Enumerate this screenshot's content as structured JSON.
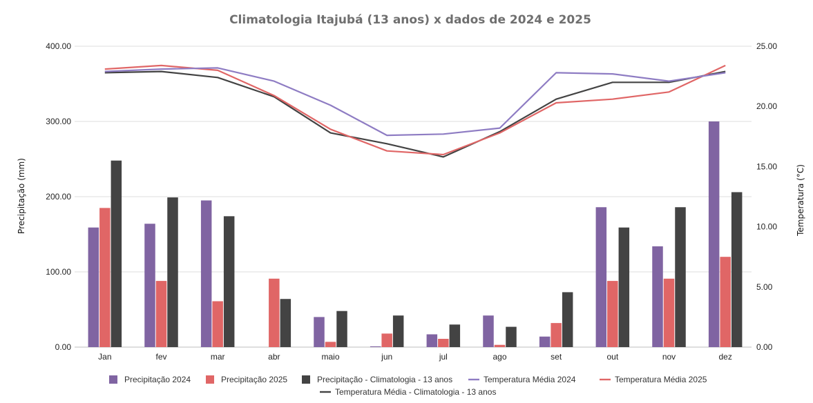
{
  "chart_data": {
    "type": "bar+line",
    "title": "Climatologia Itajubá (13 anos) x dados de 2024 e 2025",
    "categories": [
      "Jan",
      "fev",
      "mar",
      "abr",
      "maio",
      "jun",
      "jul",
      "ago",
      "set",
      "out",
      "nov",
      "dez"
    ],
    "y_left": {
      "label": "Precipitação (mm)",
      "ylim": [
        0,
        400
      ],
      "ticks": [
        "0.00",
        "100.00",
        "200.00",
        "300.00",
        "400.00"
      ]
    },
    "y_right": {
      "label": "Temperatura (°C)",
      "ylim": [
        0,
        25
      ],
      "ticks": [
        "0.00",
        "5.00",
        "10.00",
        "15.00",
        "20.00",
        "25.00"
      ]
    },
    "grid": true,
    "bar_series": [
      {
        "name": "Precipitação 2024",
        "color": "#8064a2",
        "values": [
          159,
          164,
          195,
          0,
          40,
          1,
          17,
          42,
          14,
          186,
          134,
          300
        ]
      },
      {
        "name": "Precipitação 2025",
        "color": "#e06666",
        "values": [
          185,
          88,
          61,
          91,
          7,
          18,
          11,
          3,
          32,
          88,
          91,
          120
        ]
      },
      {
        "name": "Precipitação - Climatologia - 13 anos",
        "color": "#434343",
        "values": [
          248,
          199,
          174,
          64,
          48,
          42,
          30,
          27,
          73,
          159,
          186,
          206
        ]
      }
    ],
    "line_series": [
      {
        "name": "Temperatura Média 2024",
        "color": "#8e7cc3",
        "values": [
          22.9,
          23.1,
          23.2,
          22.1,
          20.1,
          17.6,
          17.7,
          18.2,
          22.8,
          22.7,
          22.1,
          22.8
        ]
      },
      {
        "name": "Temperatura Média 2025",
        "color": "#e06666",
        "values": [
          23.1,
          23.4,
          23.0,
          20.9,
          18.1,
          16.3,
          16.0,
          17.8,
          20.3,
          20.6,
          21.2,
          23.4
        ]
      },
      {
        "name": "Temperatura Média - Climatologia - 13 anos",
        "color": "#434343",
        "values": [
          22.8,
          22.9,
          22.4,
          20.8,
          17.8,
          16.9,
          15.8,
          17.9,
          20.6,
          22.0,
          22.0,
          22.9
        ]
      }
    ],
    "legend": {
      "placement": "bottom",
      "row1": [
        {
          "label": "Precipitação 2024",
          "kind": "bar",
          "color": "#8064a2"
        },
        {
          "label": "Precipitação 2025",
          "kind": "bar",
          "color": "#e06666"
        },
        {
          "label": "Precipitação - Climatologia - 13 anos",
          "kind": "bar",
          "color": "#434343"
        },
        {
          "label": "Temperatura Média 2024",
          "kind": "line",
          "color": "#8e7cc3"
        },
        {
          "label": "Temperatura Média 2025",
          "kind": "line",
          "color": "#e06666"
        }
      ],
      "row2": [
        {
          "label": "Temperatura Média - Climatologia - 13 anos",
          "kind": "line",
          "color": "#434343"
        }
      ]
    }
  }
}
